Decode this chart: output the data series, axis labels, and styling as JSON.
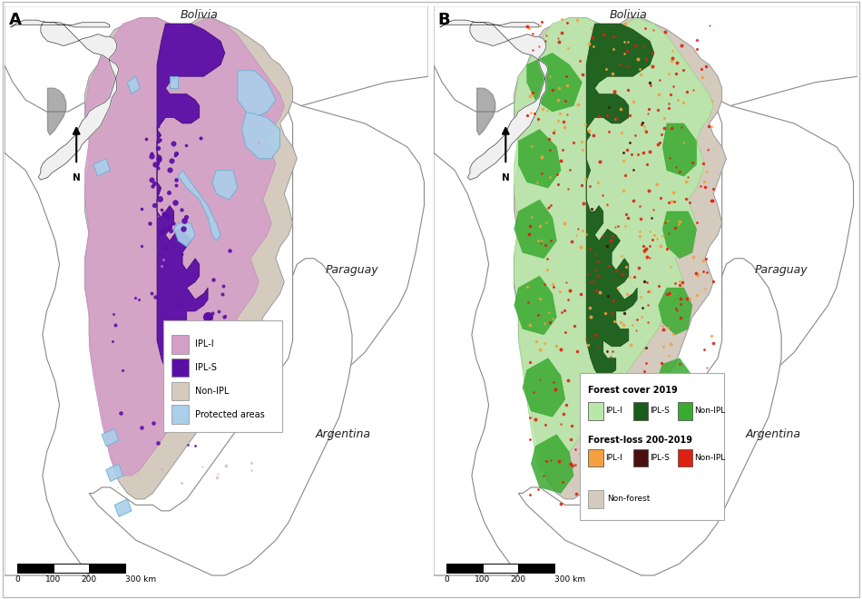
{
  "title_A": "A",
  "title_B": "B",
  "legend_A": {
    "IPL-I": "#d4a0c8",
    "IPL-S": "#5b0ea6",
    "Non-IPL": "#d4cbbe",
    "Protected areas": "#aacfea"
  },
  "legend_B_forest": {
    "title": "Forest cover 2019",
    "IPL-I": "#b8e8a8",
    "IPL-S": "#1a5c1a",
    "Non-IPL": "#3aaa30"
  },
  "legend_B_loss": {
    "title": "Forest-loss 200-2019",
    "IPL-I": "#f4a040",
    "IPL-S": "#4a1010",
    "Non-IPL": "#dd2010"
  },
  "legend_B_nonforest": {
    "Non-forest": "#d4cbbe"
  },
  "bolivia_label": "Bolivia",
  "paraguay_label": "Paraguay",
  "argentina_label": "Argentina",
  "scalebar_labels": [
    "0",
    "100",
    "200",
    "300 km"
  ],
  "background_color": "#ffffff",
  "map_bg": "#ffffff"
}
